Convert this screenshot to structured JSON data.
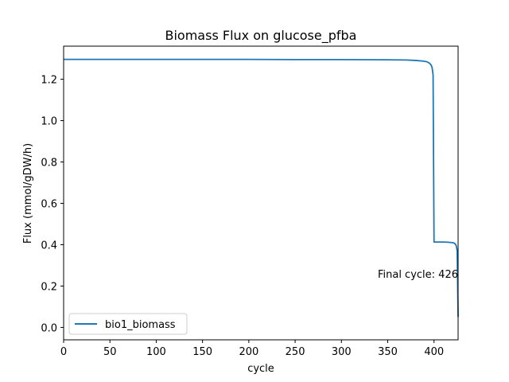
{
  "chart_data": {
    "type": "line",
    "title": "Biomass Flux on glucose_pfba",
    "xlabel": "cycle",
    "ylabel": "Flux (mmol/gDW/h)",
    "xlim": [
      0,
      426
    ],
    "ylim": [
      -0.06,
      1.36
    ],
    "xticks": [
      0,
      50,
      100,
      150,
      200,
      250,
      300,
      350,
      400
    ],
    "yticks": [
      0.0,
      0.2,
      0.4,
      0.6,
      0.8,
      1.0,
      1.2
    ],
    "ytick_labels": [
      "0.0",
      "0.2",
      "0.4",
      "0.6",
      "0.8",
      "1.0",
      "1.2"
    ],
    "grid": false,
    "legend_position": "lower-left",
    "annotation": {
      "text": "Final cycle: 426",
      "x": 426,
      "y": 0.22
    },
    "series": [
      {
        "name": "bio1_biomass",
        "color": "#1f77b4",
        "x": [
          0,
          50,
          100,
          150,
          200,
          250,
          300,
          350,
          370,
          380,
          388,
          392,
          395,
          397,
          398,
          399,
          399.5,
          400,
          405,
          410,
          415,
          420,
          422,
          423,
          424,
          425,
          426
        ],
        "y": [
          1.296,
          1.296,
          1.296,
          1.296,
          1.296,
          1.295,
          1.295,
          1.294,
          1.293,
          1.291,
          1.288,
          1.285,
          1.278,
          1.268,
          1.255,
          1.22,
          0.8,
          0.413,
          0.413,
          0.413,
          0.412,
          0.41,
          0.407,
          0.403,
          0.395,
          0.37,
          0.05
        ]
      }
    ]
  }
}
